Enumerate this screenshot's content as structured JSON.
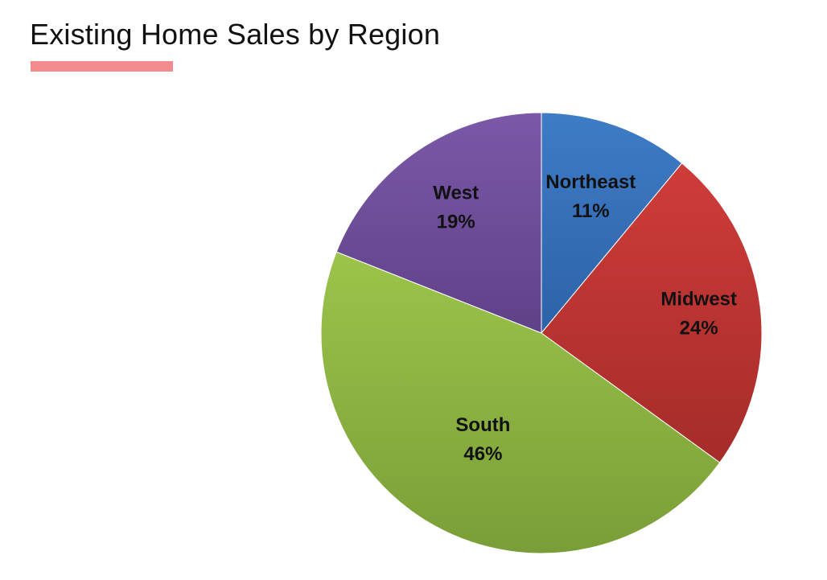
{
  "slide": {
    "title": "Existing Home Sales by Region",
    "underline_color": "#F28B8B"
  },
  "chart_data": {
    "type": "pie",
    "title": "Existing Home Sales by Region",
    "slices": [
      {
        "name": "Northeast",
        "value": 11,
        "label": "11%",
        "color": "#3E7CC6",
        "color_dark": "#2D62A8"
      },
      {
        "name": "Midwest",
        "value": 24,
        "label": "24%",
        "color": "#CF3C3A",
        "color_dark": "#A52C29"
      },
      {
        "name": "South",
        "value": 46,
        "label": "46%",
        "color": "#9CC44B",
        "color_dark": "#7A9E37"
      },
      {
        "name": "West",
        "value": 19,
        "label": "19%",
        "color": "#7B58A8",
        "color_dark": "#5F4188"
      }
    ],
    "start": "top",
    "direction": "clockwise",
    "data_labels": "category and percentage, inside slices",
    "legend": "none"
  }
}
